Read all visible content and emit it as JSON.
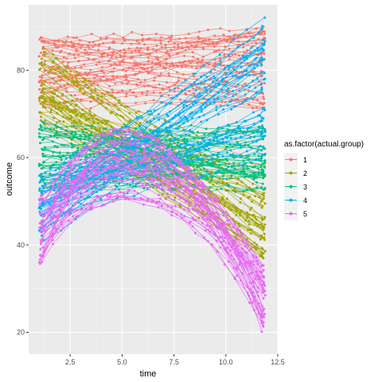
{
  "chart_data": {
    "type": "line",
    "title": "",
    "xlabel": "time",
    "ylabel": "outcome",
    "xlim": [
      0.5,
      12.5
    ],
    "ylim": [
      15,
      95
    ],
    "x_ticks": [
      2.5,
      5.0,
      7.5,
      10.0,
      12.5
    ],
    "x_tick_labels": [
      "2.5",
      "5.0",
      "7.5",
      "10.0",
      "12.5"
    ],
    "y_ticks": [
      20,
      40,
      60,
      80
    ],
    "y_tick_labels": [
      "20",
      "40",
      "60",
      "80"
    ],
    "grid": true,
    "legend": {
      "title": "as.factor(actual.group)",
      "placement": "right",
      "entries": [
        "1",
        "2",
        "3",
        "4",
        "5"
      ]
    },
    "colors": [
      "#F8766D",
      "#A3A500",
      "#00BF7D",
      "#00B0F6",
      "#E76BF3"
    ],
    "series": [
      {
        "name": "1",
        "trend": "flat-high",
        "start_range": [
          71,
          88
        ],
        "end_range": [
          71,
          90
        ]
      },
      {
        "name": "2",
        "trend": "decreasing",
        "start_range": [
          66,
          86
        ],
        "end_range": [
          37,
          58
        ]
      },
      {
        "name": "3",
        "trend": "flat-mid",
        "start_range": [
          52,
          68
        ],
        "end_range": [
          52,
          67
        ]
      },
      {
        "name": "4",
        "trend": "increasing",
        "start_range": [
          40,
          56
        ],
        "end_range": [
          60,
          92
        ]
      },
      {
        "name": "5",
        "trend": "peaked",
        "start_range": [
          34,
          52
        ],
        "peak_x": 5,
        "peak_range": [
          50,
          67
        ],
        "end_range": [
          18,
          37
        ]
      }
    ]
  }
}
